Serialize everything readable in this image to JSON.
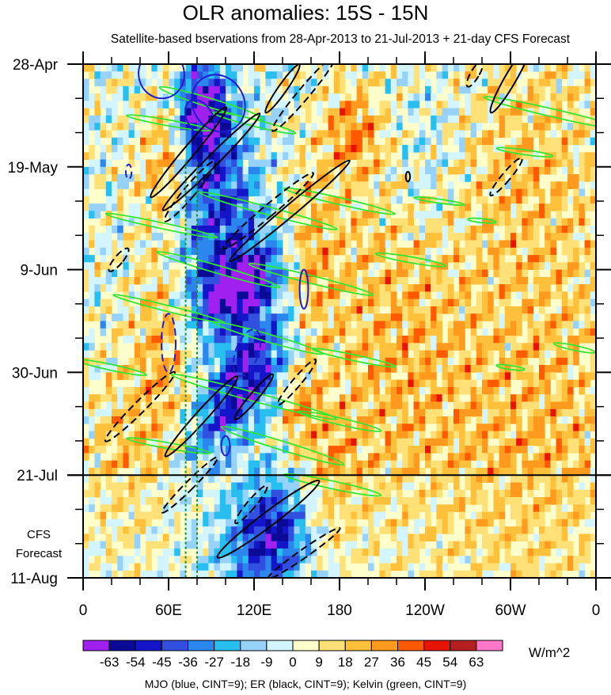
{
  "title": "OLR anomalies: 15S - 15N",
  "subtitle": "Satellite-based bservations from 28-Apr-2013 to 21-Jul-2013 + 21-day CFS Forecast",
  "forecast_label": [
    "CFS",
    "Forecast"
  ],
  "unit": "W/m^2",
  "footnote": "MJO (blue, CINT=9); ER (black, CINT=9); Kelvin (green, CINT=9)",
  "chart_data": {
    "type": "heatmap",
    "title": "OLR anomalies: 15S - 15N",
    "subtitle": "Satellite-based bservations from 28-Apr-2013 to 21-Jul-2013 + 21-day CFS Forecast",
    "x_axis": {
      "range_degrees_east": [
        0,
        360
      ],
      "ticks": [
        {
          "lon": 0,
          "label": "0"
        },
        {
          "lon": 60,
          "label": "60E"
        },
        {
          "lon": 120,
          "label": "120E"
        },
        {
          "lon": 180,
          "label": "180"
        },
        {
          "lon": 240,
          "label": "120W"
        },
        {
          "lon": 300,
          "label": "60W"
        },
        {
          "lon": 360,
          "label": "0"
        }
      ]
    },
    "y_axis": {
      "range_days_from_28_apr": [
        0,
        105
      ],
      "direction": "time increases downward",
      "ticks": [
        {
          "day": 0,
          "label": "28-Apr"
        },
        {
          "day": 21,
          "label": "19-May"
        },
        {
          "day": 42,
          "label": "9-Jun"
        },
        {
          "day": 63,
          "label": "30-Jun"
        },
        {
          "day": 84,
          "label": "21-Jul"
        },
        {
          "day": 105,
          "label": "11-Aug"
        }
      ],
      "forecast_start_day": 84
    },
    "colorbar": {
      "unit": "W/m^2",
      "levels": [
        "-63",
        "-54",
        "-45",
        "-36",
        "-27",
        "-18",
        "-9",
        "0",
        "9",
        "18",
        "27",
        "36",
        "45",
        "54",
        "63"
      ],
      "colors": [
        "#a020f0",
        "#0a0a96",
        "#1414c8",
        "#3250e0",
        "#2b86ee",
        "#28bef0",
        "#96d2fa",
        "#d2f5ff",
        "#ffffcc",
        "#ffe178",
        "#ffc03c",
        "#ff9a1e",
        "#ff5a00",
        "#e61400",
        "#b42020",
        "#ff78c8"
      ]
    },
    "contours": {
      "MJO": {
        "color": "#1e1ecf",
        "cint": 9
      },
      "ER": {
        "color": "#000000",
        "cint": 9
      },
      "Kelvin": {
        "color": "#32e632",
        "cint": 9
      }
    },
    "reference_lines": {
      "dotted_green_longitudes": [
        72,
        80
      ]
    },
    "footnote": "MJO (blue, CINT=9); ER (black, CINT=9); Kelvin (green, CINT=9)"
  }
}
